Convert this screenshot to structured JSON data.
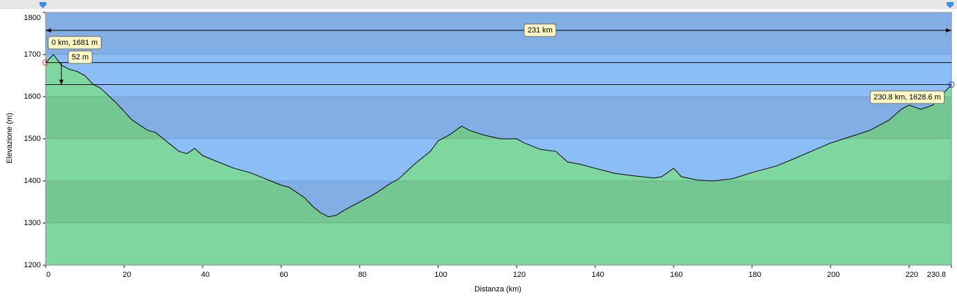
{
  "chart_data": {
    "type": "area",
    "y_label": "Elevazione (m)",
    "x_label": "Distanza   (km)",
    "x": [
      0,
      2,
      4,
      6,
      8,
      10,
      12,
      14,
      18,
      22,
      26,
      28,
      30,
      34,
      36,
      38,
      40,
      44,
      48,
      52,
      56,
      60,
      62,
      66,
      68,
      70,
      72,
      74,
      76,
      78,
      80,
      84,
      88,
      90,
      94,
      98,
      100,
      103,
      106,
      108,
      112,
      116,
      120,
      122,
      126,
      130,
      133,
      136,
      140,
      145,
      150,
      155,
      157,
      160,
      162,
      166,
      170,
      175,
      180,
      186,
      190,
      195,
      200,
      205,
      210,
      215,
      218,
      220,
      223,
      226,
      230.8
    ],
    "series": [
      {
        "color": "#7ed79e",
        "values": [
          1681,
          1700,
          1675,
          1665,
          1660,
          1650,
          1630,
          1620,
          1585,
          1545,
          1520,
          1515,
          1500,
          1470,
          1465,
          1477,
          1460,
          1445,
          1430,
          1420,
          1405,
          1390,
          1385,
          1360,
          1340,
          1325,
          1315,
          1318,
          1330,
          1340,
          1350,
          1370,
          1395,
          1405,
          1440,
          1470,
          1495,
          1510,
          1530,
          1520,
          1508,
          1500,
          1500,
          1490,
          1475,
          1470,
          1445,
          1440,
          1430,
          1418,
          1412,
          1407,
          1410,
          1430,
          1410,
          1402,
          1400,
          1405,
          1420,
          1435,
          1450,
          1470,
          1490,
          1505,
          1520,
          1545,
          1570,
          1580,
          1570,
          1580,
          1628.6
        ]
      }
    ],
    "sky_color": "#8bbdf7",
    "xlim": [
      0,
      230.8
    ],
    "ylim": [
      1200,
      1800
    ],
    "xticks": [
      0,
      20,
      40,
      60,
      80,
      100,
      120,
      140,
      160,
      180,
      200,
      220,
      230.8
    ],
    "yticks": [
      1200,
      1300,
      1400,
      1500,
      1600,
      1700,
      1800
    ],
    "grid": true,
    "distance_label": "231 km",
    "start_label": "0 km, 1681 m",
    "drop_label": "52 m",
    "end_label": "230.8 km, 1628.6 m"
  }
}
